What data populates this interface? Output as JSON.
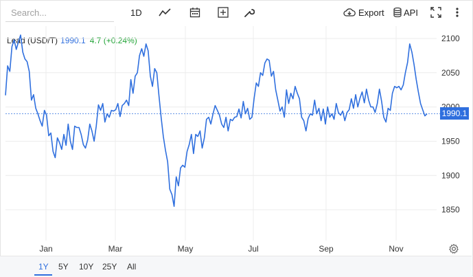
{
  "search": {
    "placeholder": "Search..."
  },
  "toolbar": {
    "interval_label": "1D",
    "export_label": "Export",
    "api_label": "API"
  },
  "instrument": {
    "name": "Lead (USD/T)",
    "last": "1990.1",
    "change": "4.7 (+0.24%)"
  },
  "range_buttons": [
    "1Y",
    "5Y",
    "10Y",
    "25Y",
    "All"
  ],
  "active_range": "1Y",
  "colors": {
    "line": "#2f6fde",
    "change_up": "#21a336",
    "grid": "#ececec"
  },
  "chart_data": {
    "type": "line",
    "title": "",
    "xlabel": "",
    "ylabel": "",
    "x_tick_labels": [
      "Jan",
      "Mar",
      "May",
      "Jul",
      "Sep",
      "Nov"
    ],
    "y_tick_labels": [
      "1850",
      "1900",
      "1950",
      "2000",
      "2050",
      "2100"
    ],
    "ylim": [
      1805,
      2118
    ],
    "grid": true,
    "current_price_label": "1990.1",
    "series": [
      {
        "values": [
          2017,
          2060,
          2052,
          2088,
          2098,
          2084,
          2095,
          2105,
          2080,
          2070,
          2066,
          2052,
          2010,
          2018,
          1998,
          1990,
          1980,
          1972,
          1995,
          1988,
          1958,
          1962,
          1935,
          1926,
          1955,
          1948,
          1938,
          1960,
          1944,
          1975,
          1950,
          1938,
          1972,
          1970,
          1970,
          1960,
          1945,
          1940,
          1952,
          1975,
          1965,
          1950,
          1972,
          2003,
          1995,
          2005,
          1978,
          1990,
          1985,
          1995,
          1994,
          1996,
          2005,
          1986,
          2002,
          2005,
          2010,
          2002,
          2040,
          2020,
          2045,
          2050,
          2075,
          2085,
          2074,
          2092,
          2082,
          2045,
          2030,
          2056,
          2050,
          2016,
          1985,
          1957,
          1937,
          1920,
          1880,
          1872,
          1855,
          1898,
          1885,
          1911,
          1915,
          1912,
          1935,
          1945,
          1960,
          1932,
          1960,
          1957,
          1965,
          1940,
          1955,
          1982,
          1985,
          1975,
          1990,
          2002,
          1995,
          1988,
          1975,
          1970,
          1985,
          1965,
          1982,
          1980,
          1985,
          1986,
          1997,
          1984,
          2008,
          1990,
          1998,
          1982,
          1985,
          2012,
          2035,
          2030,
          2050,
          2046,
          2064,
          2070,
          2068,
          2045,
          2052,
          2025,
          2010,
          1994,
          2000,
          1985,
          2025,
          2005,
          2020,
          2012,
          2030,
          2020,
          2012,
          1985,
          1980,
          1965,
          1983,
          1990,
          1988,
          2010,
          1990,
          1998,
          1980,
          1997,
          1975,
          2000,
          1985,
          1990,
          1982,
          2005,
          1992,
          1988,
          1994,
          1980,
          1992,
          1996,
          2012,
          1998,
          2018,
          2000,
          2013,
          2022,
          2006,
          2026,
          2010,
          2000,
          2000,
          1992,
          2005,
          2026,
          2008,
          1985,
          1978,
          1998,
          1995,
          2020,
          2030,
          2028,
          2030,
          2025,
          2032,
          2050,
          2065,
          2092,
          2080,
          2062,
          2040,
          2022,
          2005,
          1996,
          1987,
          1990
        ]
      }
    ]
  }
}
